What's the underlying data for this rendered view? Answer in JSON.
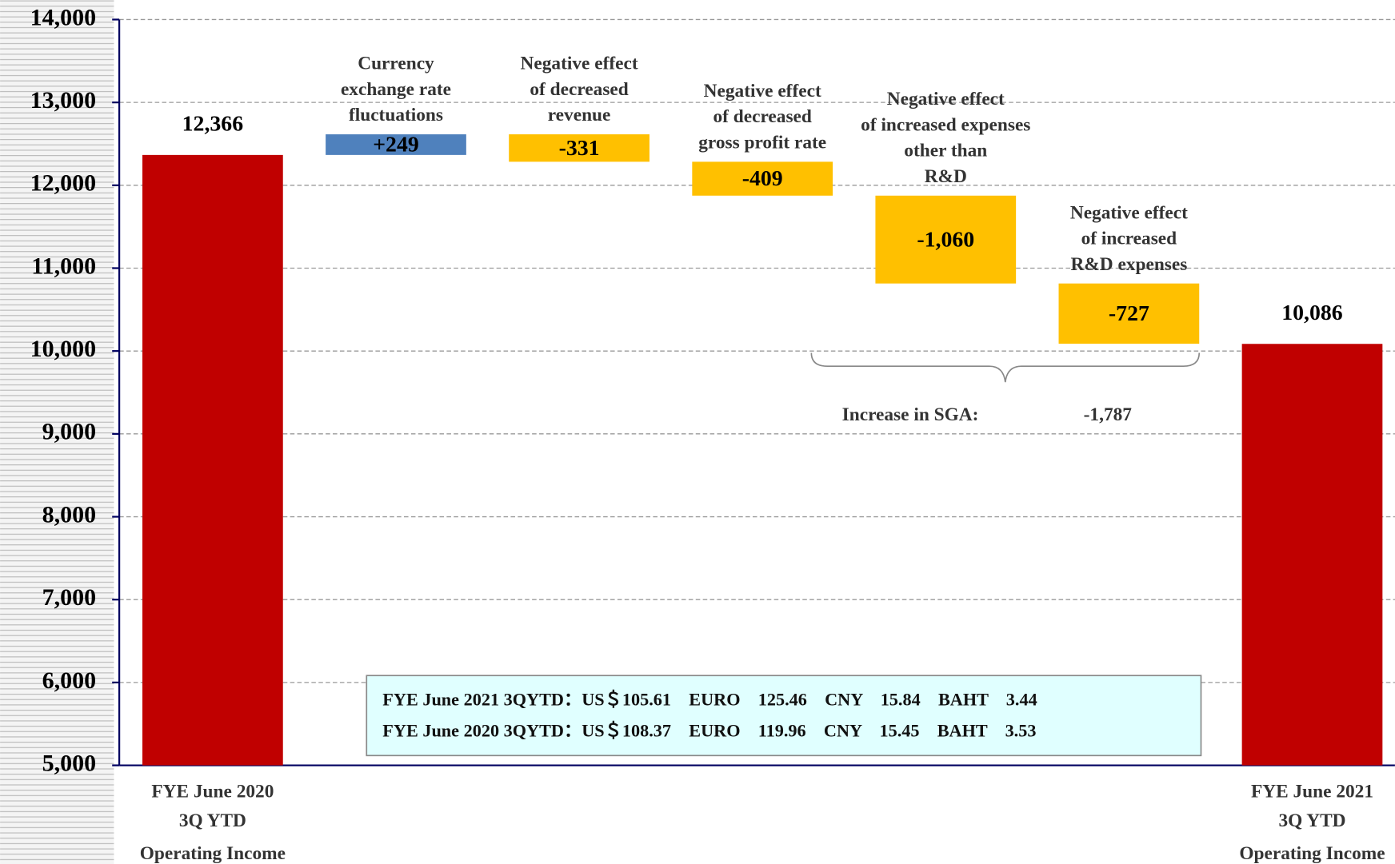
{
  "chart_data": {
    "type": "waterfall",
    "categories": [
      [
        "FYE June 2020",
        "3Q YTD",
        "Operating Income"
      ],
      [
        "Currency",
        "exchange rate",
        "fluctuations"
      ],
      [
        "Negative effect",
        "of decreased",
        "revenue"
      ],
      [
        "Negative effect",
        "of decreased",
        "gross profit rate"
      ],
      [
        "Negative effect",
        "of increased expenses",
        "other than",
        "R&D"
      ],
      [
        "Negative effect",
        "of increased",
        "R&D expenses"
      ],
      [
        "FYE June 2021",
        "3Q YTD",
        "Operating Income"
      ]
    ],
    "measure": [
      "absolute",
      "relative",
      "relative",
      "relative",
      "relative",
      "relative",
      "total"
    ],
    "values": [
      12366,
      249,
      -331,
      -409,
      -1060,
      -727,
      10086
    ],
    "value_labels": [
      "12,366",
      "+249",
      "-331",
      "-409",
      "-1,060",
      "-727",
      "10,086"
    ],
    "colors": {
      "total": "#c00000",
      "increase": "#4f81bd",
      "decrease": "#ffc000"
    },
    "ylim": [
      5000,
      14000
    ],
    "yticks": [
      {
        "value": 5000,
        "label": "5,000"
      },
      {
        "value": 6000,
        "label": "6,000"
      },
      {
        "value": 7000,
        "label": "7,000"
      },
      {
        "value": 8000,
        "label": "8,000"
      },
      {
        "value": 9000,
        "label": "9,000"
      },
      {
        "value": 10000,
        "label": "10,000"
      },
      {
        "value": 11000,
        "label": "11,000"
      },
      {
        "value": 12000,
        "label": "12,000"
      },
      {
        "value": 13000,
        "label": "13,000"
      },
      {
        "value": 14000,
        "label": "14,000"
      }
    ],
    "grid": true,
    "annotation": {
      "text": "Increase in SGA:",
      "value": -1787,
      "value_label": "-1,787"
    },
    "note_lines": [
      "FYE June 2021 3QYTD：US＄105.61　EURO　125.46　CNY　15.84　BAHT　3.44",
      "FYE June 2020 3QYTD：US＄108.37　EURO　119.96　CNY　15.45　BAHT　3.53"
    ]
  }
}
